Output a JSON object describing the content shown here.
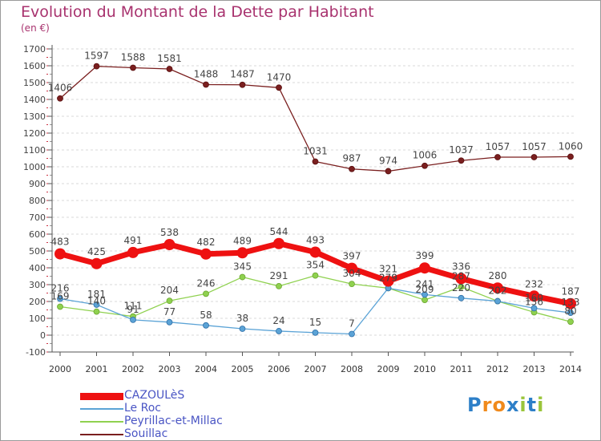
{
  "title": "Evolution du Montant de la Dette par Habitant",
  "unit": "(en €)",
  "brand": "Proxiti",
  "chart_data": {
    "type": "line",
    "title": "Evolution du Montant de la Dette par Habitant",
    "ylabel": "(en €)",
    "categories": [
      "2000",
      "2001",
      "2002",
      "2003",
      "2004",
      "2005",
      "2006",
      "2007",
      "2008",
      "2009",
      "2010",
      "2011",
      "2012",
      "2013",
      "2014"
    ],
    "ylim": [
      -100,
      1700
    ],
    "yticks": [
      -100,
      0,
      100,
      200,
      300,
      400,
      500,
      600,
      700,
      800,
      900,
      1000,
      1100,
      1200,
      1300,
      1400,
      1500,
      1600,
      1700
    ],
    "grid": true,
    "legend_position": "bottom-left",
    "series": [
      {
        "name": "Souillac",
        "color": "#7a1f1f",
        "values": [
          1406,
          1597,
          1588,
          1581,
          1488,
          1487,
          1470,
          1031,
          987,
          974,
          1006,
          1037,
          1057,
          1057,
          1060
        ]
      },
      {
        "name": "Peyrillac-et-Millac",
        "color": "#8fd14f",
        "values": [
          169,
          140,
          111,
          204,
          246,
          345,
          291,
          354,
          304,
          279,
          209,
          287,
          202,
          136,
          80
        ]
      },
      {
        "name": "Le Roc",
        "color": "#5ba3d6",
        "values": [
          216,
          181,
          91,
          77,
          58,
          38,
          24,
          15,
          7,
          279,
          241,
          220,
          202,
          160,
          133
        ]
      },
      {
        "name": "CAZOULèS",
        "color": "#ee1111",
        "values": [
          483,
          425,
          491,
          538,
          482,
          489,
          544,
          493,
          397,
          321,
          399,
          336,
          280,
          232,
          187
        ]
      }
    ]
  }
}
